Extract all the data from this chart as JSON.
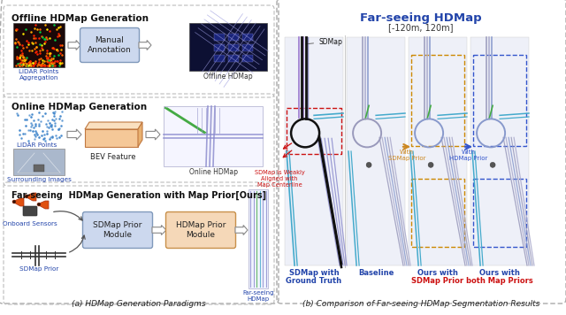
{
  "fig_width": 6.4,
  "fig_height": 3.56,
  "dpi": 100,
  "bg_color": "#ffffff",
  "left_panel": {
    "title_offline": "Offline HDMap Generation",
    "title_online": "Online HDMap Generation",
    "title_ours": "Far-seeing  HDMap Generation with Map Prior[Ours]",
    "caption": "(a) HDMap Generation Paradigms",
    "box1_label": "Manual\nAnnotation",
    "box2_label": "BEV Feature",
    "box3_label": "SDMap Prior\nModule",
    "box4_label": "HDMap Prior\nModule",
    "lidar_label": "LiDAR Points\nAggregation",
    "offline_hdmap_label": "Offline HDMap",
    "lidar_points_label": "LiDAR Points",
    "surround_label": "Surrounding Images",
    "online_hdmap_label": "Online HDMap",
    "onboard_label": "Onboard Sensors",
    "sdmap_prior_label": "SDMap Prior",
    "farseeing_label": "Far-seeing\nHDMap"
  },
  "right_panel": {
    "title": "Far-seeing HDMap",
    "subtitle": "[-120m, 120m]",
    "caption": "(b) Comparison of Far-seeing HDMap Segmentation Results",
    "col_labels": [
      "SDMap with\nGround Truth",
      "Baseline",
      "Ours with\nSDMap Prior",
      "Ours with\nboth Map Priors"
    ],
    "sdmap_label": "SDMap",
    "annotation_red": "SDMap is Weakly\nAligned with\nMap Centerline",
    "arrow_orange_label": "With\nSDMap Prior",
    "arrow_blue_label": "With\nHDMap Prior"
  },
  "colors": {
    "box_blue_fill": "#ccd8ee",
    "box_blue_stroke": "#8099bb",
    "box_orange_fill": "#f5d8b8",
    "box_orange_stroke": "#c8904a",
    "dashed_border": "#999999",
    "red": "#cc2222",
    "orange": "#cc8822",
    "blue_dark": "#2244aa",
    "blue_medium": "#5577cc"
  }
}
